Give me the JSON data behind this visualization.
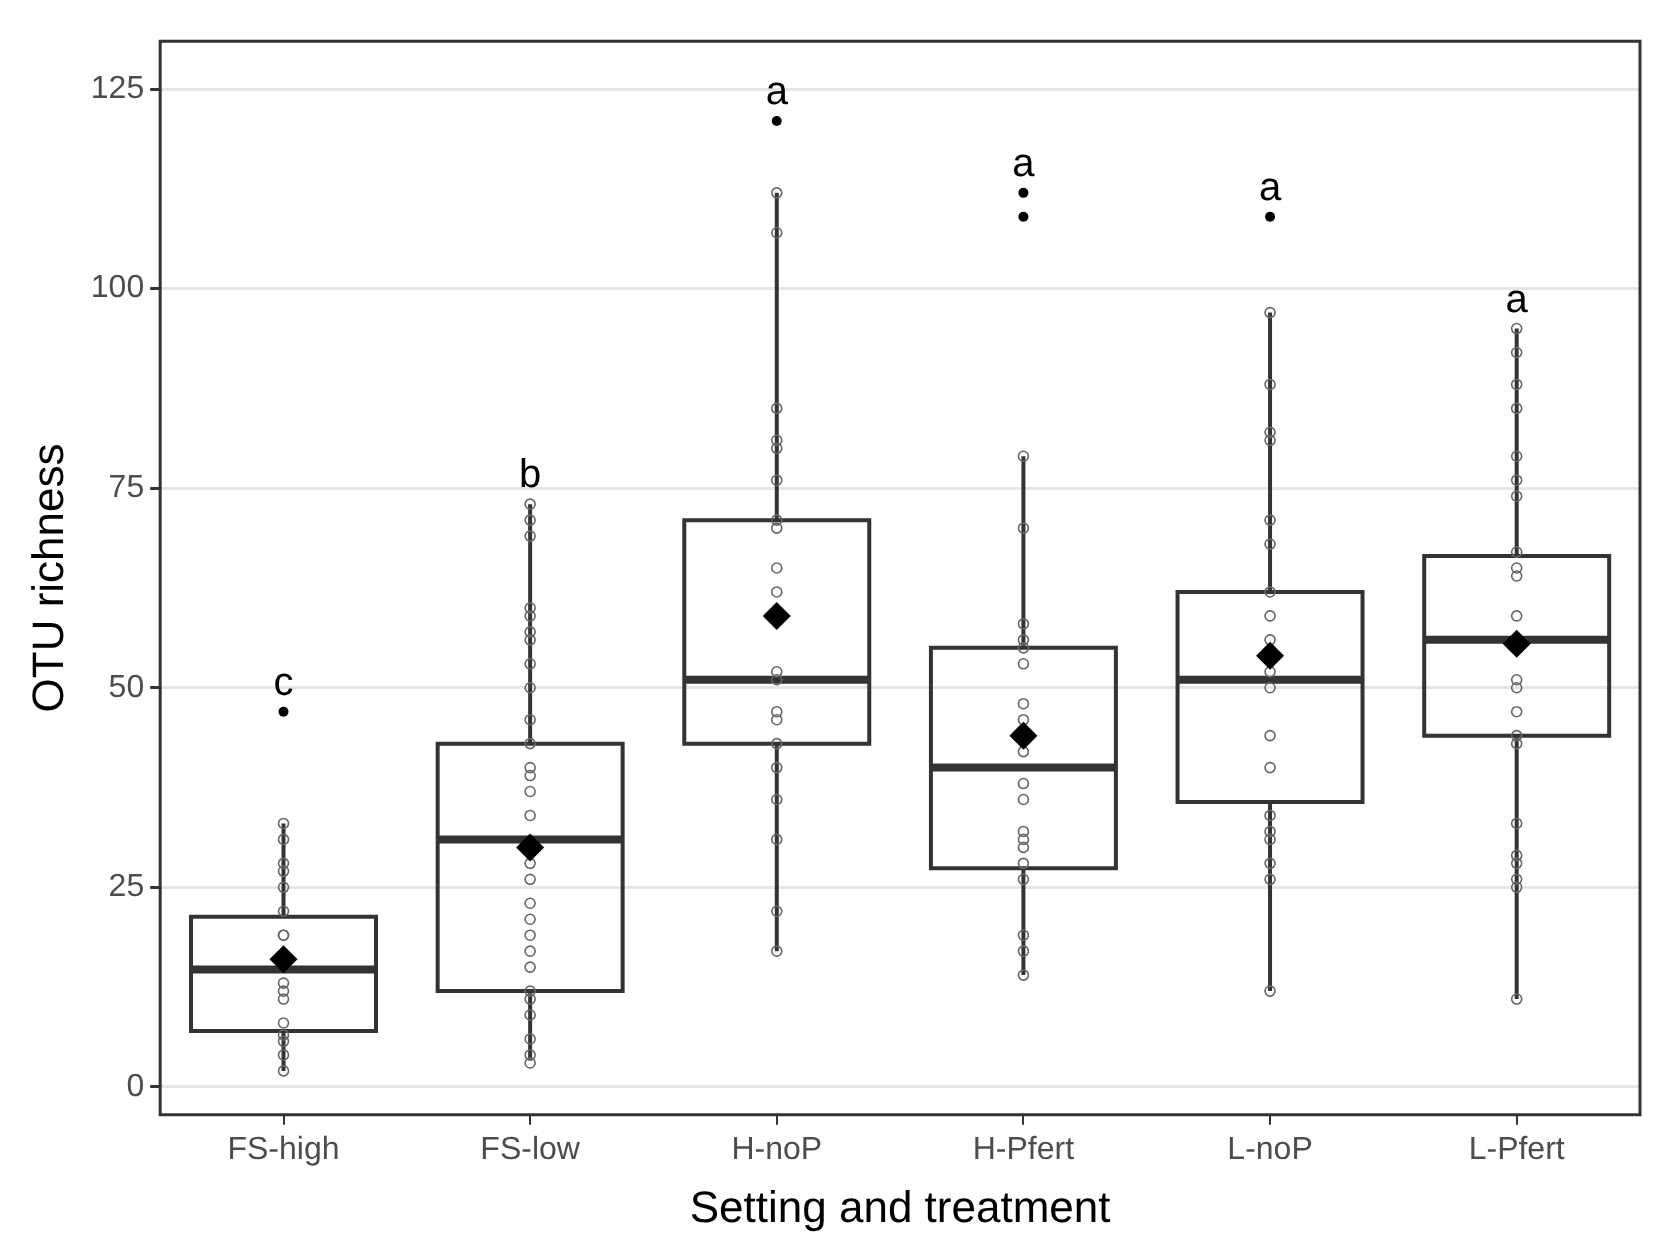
{
  "chart_data": {
    "type": "box",
    "xlabel": "Setting and treatment",
    "ylabel": "OTU richness",
    "categories": [
      "FS-high",
      "FS-low",
      "H-noP",
      "H-Pfert",
      "L-noP",
      "L-Pfert"
    ],
    "ylim": [
      -3.5,
      131
    ],
    "yticks": [
      0,
      25,
      50,
      75,
      100,
      125
    ],
    "grid": "y",
    "color": "#333333",
    "boxes": [
      {
        "low": 2,
        "q1": 7,
        "median": 14.7,
        "q3": 21.3,
        "high": 33,
        "mean": 16,
        "outliers": [
          47
        ]
      },
      {
        "low": 3.3,
        "q1": 12,
        "median": 31,
        "q3": 43,
        "high": 73,
        "mean": 30
      },
      {
        "low": 17,
        "q1": 43,
        "median": 51,
        "q3": 71,
        "high": 112,
        "mean": 59,
        "outliers": [
          121
        ]
      },
      {
        "low": 14,
        "q1": 27.4,
        "median": 40,
        "q3": 55,
        "high": 79,
        "mean": 44,
        "outliers": [
          109,
          112
        ]
      },
      {
        "low": 12,
        "q1": 35.7,
        "median": 51,
        "q3": 62,
        "high": 97,
        "mean": 54,
        "outliers": [
          109
        ]
      },
      {
        "low": 11,
        "q1": 44,
        "median": 56,
        "q3": 66.5,
        "high": 95,
        "mean": 55.5
      }
    ],
    "series": [
      {
        "type": "scatter",
        "marker": "circle",
        "color": "#666666",
        "x": [
          "FS-high",
          "FS-high",
          "FS-high",
          "FS-high",
          "FS-high",
          "FS-high",
          "FS-high",
          "FS-high",
          "FS-high",
          "FS-high",
          "FS-high",
          "FS-high",
          "FS-high",
          "FS-high",
          "FS-high",
          "FS-high",
          "FS-low",
          "FS-low",
          "FS-low",
          "FS-low",
          "FS-low",
          "FS-low",
          "FS-low",
          "FS-low",
          "FS-low",
          "FS-low",
          "FS-low",
          "FS-low",
          "FS-low",
          "FS-low",
          "FS-low",
          "FS-low",
          "FS-low",
          "FS-low",
          "FS-low",
          "FS-low",
          "FS-low",
          "FS-low",
          "FS-low",
          "FS-low",
          "FS-low",
          "FS-low",
          "FS-low",
          "FS-low",
          "H-noP",
          "H-noP",
          "H-noP",
          "H-noP",
          "H-noP",
          "H-noP",
          "H-noP",
          "H-noP",
          "H-noP",
          "H-noP",
          "H-noP",
          "H-noP",
          "H-noP",
          "H-noP",
          "H-noP",
          "H-noP",
          "H-noP",
          "H-noP",
          "H-noP",
          "H-noP",
          "H-Pfert",
          "H-Pfert",
          "H-Pfert",
          "H-Pfert",
          "H-Pfert",
          "H-Pfert",
          "H-Pfert",
          "H-Pfert",
          "H-Pfert",
          "H-Pfert",
          "H-Pfert",
          "H-Pfert",
          "H-Pfert",
          "H-Pfert",
          "H-Pfert",
          "H-Pfert",
          "H-Pfert",
          "H-Pfert",
          "H-Pfert",
          "L-noP",
          "L-noP",
          "L-noP",
          "L-noP",
          "L-noP",
          "L-noP",
          "L-noP",
          "L-noP",
          "L-noP",
          "L-noP",
          "L-noP",
          "L-noP",
          "L-noP",
          "L-noP",
          "L-noP",
          "L-noP",
          "L-noP",
          "L-noP",
          "L-noP",
          "L-Pfert",
          "L-Pfert",
          "L-Pfert",
          "L-Pfert",
          "L-Pfert",
          "L-Pfert",
          "L-Pfert",
          "L-Pfert",
          "L-Pfert",
          "L-Pfert",
          "L-Pfert",
          "L-Pfert",
          "L-Pfert",
          "L-Pfert",
          "L-Pfert",
          "L-Pfert",
          "L-Pfert",
          "L-Pfert",
          "L-Pfert",
          "L-Pfert",
          "L-Pfert",
          "L-Pfert"
        ],
        "values": [
          33,
          31,
          28,
          27,
          25,
          22,
          19,
          19,
          13,
          12,
          11,
          8,
          6.5,
          5.7,
          4,
          2,
          73,
          71,
          69,
          60,
          59,
          57,
          56,
          53,
          50,
          46,
          43,
          40,
          39,
          37,
          34,
          28,
          26,
          23,
          21,
          19,
          17,
          15,
          12,
          11,
          9,
          6,
          4,
          3,
          112,
          107,
          85,
          81,
          80,
          76,
          71,
          70,
          65,
          62,
          52,
          51,
          47,
          46,
          43,
          40,
          36,
          31,
          22,
          17,
          79,
          70,
          58,
          56,
          55,
          53,
          48,
          46,
          42,
          38,
          36,
          32,
          31,
          30,
          28,
          26,
          19,
          17,
          14,
          97,
          88,
          82,
          81,
          71,
          68,
          62,
          59,
          56,
          52,
          50,
          44,
          40,
          34,
          32,
          31,
          28,
          26,
          12,
          95,
          92,
          88,
          85,
          79,
          76,
          74,
          67,
          65,
          64,
          59,
          51,
          50,
          47,
          44,
          43,
          33,
          29,
          28,
          26,
          25,
          11
        ]
      }
    ],
    "annotations": [
      "c",
      "b",
      "a",
      "a",
      "a",
      "a"
    ]
  }
}
